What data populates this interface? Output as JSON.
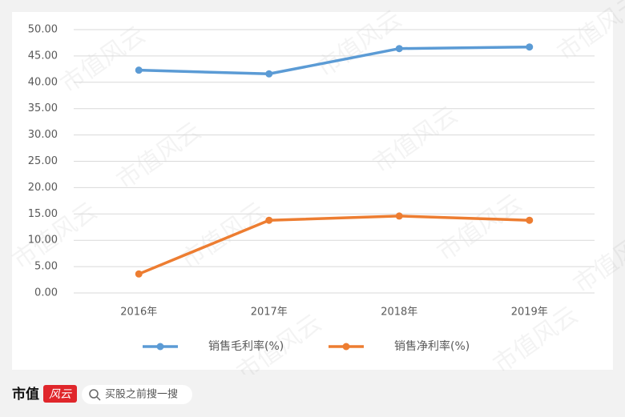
{
  "chart_data": {
    "type": "line",
    "categories": [
      "2016年",
      "2017年",
      "2018年",
      "2019年"
    ],
    "series": [
      {
        "name": "销售毛利率(%)",
        "color": "#5b9bd5",
        "values": [
          42.3,
          41.6,
          46.4,
          46.7
        ]
      },
      {
        "name": "销售净利率(%)",
        "color": "#ed7d31",
        "values": [
          3.6,
          13.8,
          14.6,
          13.8
        ]
      }
    ],
    "ylim": [
      0,
      50
    ],
    "yticks": [
      {
        "value": 0,
        "label": "0.00"
      },
      {
        "value": 5,
        "label": "5.00"
      },
      {
        "value": 10,
        "label": "10.00"
      },
      {
        "value": 15,
        "label": "15.00"
      },
      {
        "value": 20,
        "label": "20.00"
      },
      {
        "value": 25,
        "label": "25.00"
      },
      {
        "value": 30,
        "label": "30.00"
      },
      {
        "value": 35,
        "label": "35.00"
      },
      {
        "value": 40,
        "label": "40.00"
      },
      {
        "value": 45,
        "label": "45.00"
      },
      {
        "value": 50,
        "label": "50.00"
      }
    ],
    "grid": true,
    "legend": "bottom"
  },
  "watermark": "市值风云",
  "footer": {
    "logo": "市值",
    "logo_mark": "风云",
    "search": "买股之前搜一搜"
  }
}
